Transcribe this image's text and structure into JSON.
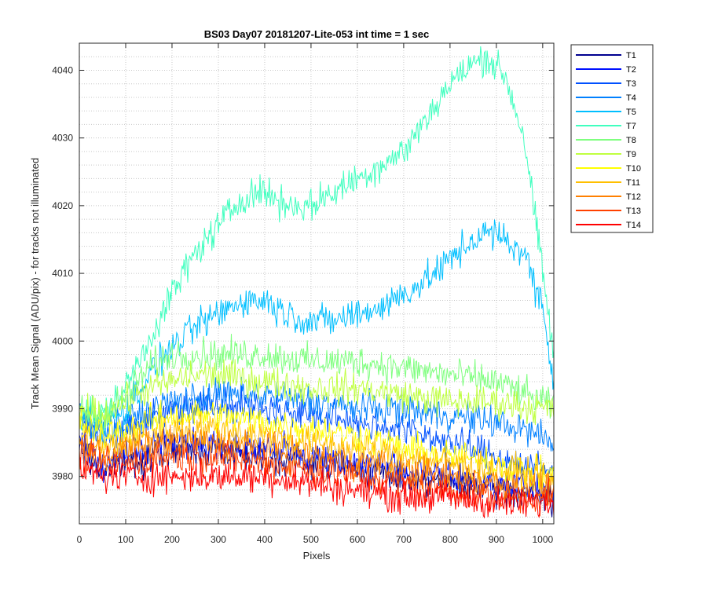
{
  "chart_data": {
    "type": "line",
    "title": "BS03 Day07 20181207-Lite-053 int time = 1 sec",
    "xlabel": "Pixels",
    "ylabel": "Track Mean Signal (ADU/pix) - for tracks not illuminated",
    "xlim": [
      0,
      1024
    ],
    "ylim": [
      3973,
      4044
    ],
    "x_ticks": [
      0,
      100,
      200,
      300,
      400,
      500,
      600,
      700,
      800,
      900,
      1000
    ],
    "y_ticks": [
      3980,
      3990,
      4000,
      4010,
      4020,
      4030,
      4040
    ],
    "grid": "on, major and minor dotted",
    "legend_position": "outside-right-top",
    "series": [
      {
        "name": "T1",
        "color": "#00008f",
        "x": [
          0,
          50,
          100,
          200,
          300,
          400,
          500,
          600,
          700,
          800,
          900,
          1000,
          1024
        ],
        "y": [
          3984,
          3981,
          3982,
          3984,
          3984,
          3983,
          3982,
          3981,
          3980,
          3979,
          3978,
          3977,
          3977
        ]
      },
      {
        "name": "T2",
        "color": "#0010ff",
        "x": [
          0,
          50,
          100,
          200,
          300,
          400,
          500,
          600,
          700,
          800,
          900,
          1000,
          1024
        ],
        "y": [
          3985,
          3982,
          3983,
          3985,
          3985,
          3984,
          3983,
          3982,
          3981,
          3980,
          3979,
          3978,
          3978
        ]
      },
      {
        "name": "T3",
        "color": "#0050ff",
        "x": [
          0,
          50,
          100,
          200,
          300,
          400,
          500,
          600,
          700,
          800,
          900,
          1000,
          1024
        ],
        "y": [
          3988,
          3986,
          3987,
          3990,
          3991,
          3990,
          3989,
          3988,
          3987,
          3985,
          3983,
          3981,
          3981
        ]
      },
      {
        "name": "T4",
        "color": "#0080ff",
        "x": [
          0,
          50,
          100,
          200,
          300,
          400,
          500,
          600,
          700,
          800,
          900,
          1000,
          1024
        ],
        "y": [
          3989,
          3987,
          3988,
          3991,
          3992,
          3992,
          3991,
          3990,
          3990,
          3989,
          3988,
          3986,
          3984
        ]
      },
      {
        "name": "T5",
        "color": "#00bfff",
        "x": [
          0,
          50,
          100,
          150,
          200,
          250,
          300,
          350,
          400,
          450,
          500,
          550,
          600,
          650,
          700,
          750,
          800,
          850,
          880,
          920,
          960,
          1000,
          1024
        ],
        "y": [
          3989,
          3988,
          3990,
          3995,
          3999,
          4002,
          4004,
          4006,
          4006,
          4004,
          4003,
          4003,
          4004,
          4005,
          4007,
          4009,
          4012,
          4015,
          4016,
          4015,
          4013,
          4005,
          3994
        ]
      },
      {
        "name": "T7",
        "color": "#40ffbf",
        "x": [
          0,
          50,
          100,
          150,
          200,
          250,
          300,
          350,
          380,
          400,
          450,
          500,
          550,
          600,
          650,
          700,
          750,
          800,
          850,
          880,
          920,
          960,
          1000,
          1024
        ],
        "y": [
          3990,
          3989,
          3993,
          4000,
          4007,
          4013,
          4017,
          4021,
          4022,
          4022,
          4020,
          4020,
          4022,
          4024,
          4026,
          4028,
          4033,
          4038,
          4041,
          4042,
          4039,
          4030,
          4010,
          3998
        ]
      },
      {
        "name": "T8",
        "color": "#7fff7f",
        "x": [
          0,
          50,
          100,
          150,
          200,
          250,
          300,
          400,
          500,
          600,
          700,
          800,
          900,
          1000,
          1024
        ],
        "y": [
          3990,
          3989,
          3992,
          3996,
          3998,
          3998,
          3998,
          3998,
          3997,
          3997,
          3996,
          3995,
          3994,
          3991,
          3990
        ]
      },
      {
        "name": "T9",
        "color": "#bfff40",
        "x": [
          0,
          50,
          100,
          150,
          200,
          250,
          300,
          400,
          500,
          600,
          700,
          800,
          900,
          1000,
          1024
        ],
        "y": [
          3990,
          3989,
          3991,
          3993,
          3994,
          3995,
          3995,
          3994,
          3993,
          3993,
          3992,
          3991,
          3991,
          3990,
          3990
        ]
      },
      {
        "name": "T10",
        "color": "#ffff00",
        "x": [
          0,
          50,
          100,
          200,
          300,
          400,
          500,
          600,
          700,
          800,
          900,
          1000,
          1024
        ],
        "y": [
          3988,
          3986,
          3987,
          3989,
          3989,
          3988,
          3987,
          3986,
          3984,
          3983,
          3982,
          3980,
          3980
        ]
      },
      {
        "name": "T11",
        "color": "#ffbf00",
        "x": [
          0,
          50,
          100,
          200,
          300,
          400,
          500,
          600,
          700,
          800,
          900,
          1000,
          1024
        ],
        "y": [
          3986,
          3984,
          3985,
          3987,
          3987,
          3986,
          3985,
          3984,
          3983,
          3982,
          3981,
          3980,
          3979
        ]
      },
      {
        "name": "T12",
        "color": "#ff8000",
        "x": [
          0,
          50,
          100,
          200,
          300,
          400,
          500,
          600,
          700,
          800,
          900,
          1000,
          1024
        ],
        "y": [
          3985,
          3983,
          3984,
          3985,
          3985,
          3984,
          3983,
          3982,
          3981,
          3980,
          3979,
          3978,
          3978
        ]
      },
      {
        "name": "T13",
        "color": "#ff4000",
        "x": [
          0,
          50,
          100,
          200,
          300,
          400,
          500,
          600,
          700,
          800,
          900,
          1000,
          1024
        ],
        "y": [
          3983,
          3982,
          3982,
          3983,
          3983,
          3982,
          3981,
          3980,
          3979,
          3978,
          3977,
          3977,
          3977
        ]
      },
      {
        "name": "T14",
        "color": "#ff0000",
        "x": [
          0,
          50,
          100,
          200,
          300,
          400,
          500,
          600,
          700,
          800,
          900,
          1000,
          1024
        ],
        "y": [
          3981,
          3980,
          3980,
          3980,
          3980,
          3980,
          3979,
          3978,
          3977,
          3977,
          3976,
          3976,
          3976
        ]
      }
    ]
  }
}
